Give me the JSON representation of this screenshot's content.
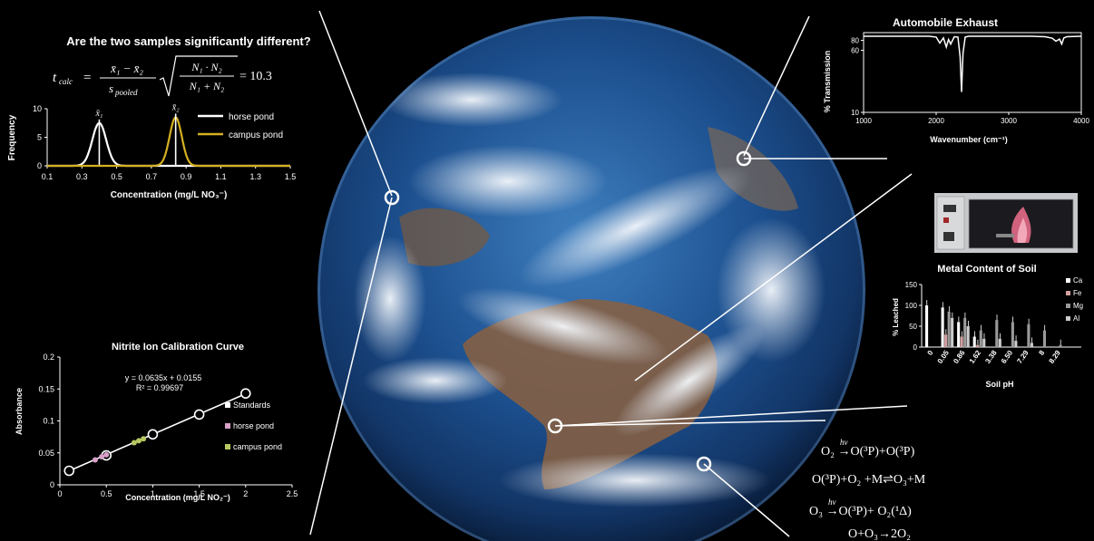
{
  "colors": {
    "background": "#000000",
    "white": "#ffffff",
    "gold": "#d4b021",
    "pink": "#d8a0c8",
    "green": "#b8c860",
    "earth_ocean": "#1b4f8a",
    "earth_cloud": "#e8eef4",
    "earth_land": "#9a6a44"
  },
  "ttest": {
    "question": "Are the two samples significantly different?",
    "formula": {
      "lhs": "t",
      "lhs_sub": "calc",
      "numerator": "x̄₁ − x̄₂",
      "denominator": "s",
      "denominator_sub": "pooled",
      "root_numerator": "N₁ · N₂",
      "root_denominator": "N₁ + N₂",
      "result": "= 10.3"
    }
  },
  "ozone": {
    "lines": [
      {
        "lhs": "O₂",
        "arrow": "hν",
        "rhs": "O(³P)+O(³P)"
      },
      {
        "lhs": "O(³P)+O₂ +M⇌O₃+M",
        "arrow": "",
        "rhs": ""
      },
      {
        "lhs": "O₃",
        "arrow": "hν",
        "rhs": "O(³P)+ O₂(¹Δ)"
      },
      {
        "lhs": "O+O₃→2O₂",
        "arrow": "",
        "rhs": ""
      }
    ]
  },
  "chart_data": [
    {
      "id": "distribution",
      "type": "line",
      "title": "",
      "xlabel": "Concentration (mg/L NO₃⁻)",
      "ylabel": "Frequency",
      "xlim": [
        0.1,
        1.5
      ],
      "ylim": [
        0,
        10
      ],
      "x_ticks": [
        "0.1",
        "0.3",
        "0.5",
        "0.7",
        "0.9",
        "1.1",
        "1.3",
        "1.5"
      ],
      "y_ticks": [
        "0",
        "5",
        "10"
      ],
      "legend_position": "top-right",
      "series": [
        {
          "name": "horse pond",
          "color": "#ffffff",
          "peak_x": 0.4,
          "peak_y": 7.5,
          "sigma": 0.04,
          "mean_label": "x̄₁"
        },
        {
          "name": "campus pond",
          "color": "#d4b021",
          "peak_x": 0.84,
          "peak_y": 8.5,
          "sigma": 0.035,
          "mean_label": "x̄₂"
        }
      ]
    },
    {
      "id": "ir",
      "type": "line",
      "title": "Automobile Exhaust",
      "xlabel": "Wavenumber (cm⁻¹)",
      "ylabel": "% Transmission",
      "xlim": [
        1000,
        4000
      ],
      "ylim": [
        10,
        100
      ],
      "y_log": true,
      "x_ticks": [
        "1000",
        "2000",
        "3000",
        "4000"
      ],
      "y_ticks": [
        "10",
        "60",
        "80"
      ],
      "series": [
        {
          "name": "",
          "color": "#ffffff",
          "x": [
            1000,
            1300,
            1600,
            1900,
            2000,
            2050,
            2100,
            2140,
            2170,
            2200,
            2250,
            2300,
            2330,
            2350,
            2370,
            2400,
            2450,
            2600,
            2900,
            3300,
            3500,
            3600,
            3650,
            3700,
            3730,
            3760,
            3800,
            4000
          ],
          "y": [
            90,
            90,
            90,
            90,
            88,
            74,
            86,
            66,
            82,
            72,
            89,
            88,
            50,
            18,
            55,
            88,
            90,
            90,
            90,
            90,
            89,
            85,
            78,
            83,
            72,
            86,
            89,
            90
          ]
        }
      ]
    },
    {
      "id": "metals",
      "type": "bar",
      "title": "Metal Content of Soil",
      "xlabel": "Soil pH",
      "ylabel": "% Leached",
      "ylim": [
        0,
        150
      ],
      "y_ticks": [
        "0",
        "50",
        "100",
        "150"
      ],
      "categories": [
        "0",
        "0.05",
        "0.86",
        "1.62",
        "3.38",
        "6.50",
        "7.29",
        "8",
        "8.29"
      ],
      "legend_position": "right",
      "series": [
        {
          "name": "Ca",
          "color": "#ffffff",
          "values": [
            100,
            95,
            60,
            25,
            0,
            0,
            0,
            0,
            0
          ]
        },
        {
          "name": "Fe",
          "color": "#d4a0a0",
          "values": [
            0,
            30,
            25,
            5,
            0,
            0,
            0,
            0,
            0
          ]
        },
        {
          "name": "Mg",
          "color": "#9a9a9a",
          "values": [
            0,
            85,
            70,
            40,
            65,
            60,
            55,
            40,
            5
          ]
        },
        {
          "name": "Al",
          "color": "#cccccc",
          "values": [
            0,
            70,
            50,
            20,
            20,
            15,
            10,
            0,
            0
          ]
        }
      ]
    },
    {
      "id": "calibration",
      "type": "scatter",
      "title": "Nitrite Ion Calibration Curve",
      "xlabel": "Concentration (mg/L NO₂⁻)",
      "ylabel": "Absorbance",
      "xlim": [
        0,
        2.5
      ],
      "ylim": [
        0,
        0.2
      ],
      "x_ticks": [
        "0",
        "0.5",
        "1",
        "1.5",
        "2",
        "2.5"
      ],
      "y_ticks": [
        "0",
        "0.05",
        "0.1",
        "0.15",
        "0.2"
      ],
      "equation": "y = 0.0635x + 0.0155",
      "r2": "R² = 0.99697",
      "legend_position": "right",
      "series": [
        {
          "name": "Standards",
          "color": "#ffffff",
          "x": [
            0.1,
            0.5,
            1,
            1.5,
            2
          ],
          "y": [
            0.022,
            0.046,
            0.079,
            0.11,
            0.143
          ]
        },
        {
          "name": "horse pond",
          "color": "#d8a0c8",
          "x": [
            0.38,
            0.45,
            0.5
          ],
          "y": [
            0.039,
            0.044,
            0.047
          ]
        },
        {
          "name": "campus pond",
          "color": "#b8c860",
          "x": [
            0.8,
            0.85,
            0.9
          ],
          "y": [
            0.066,
            0.069,
            0.072
          ]
        }
      ]
    }
  ]
}
